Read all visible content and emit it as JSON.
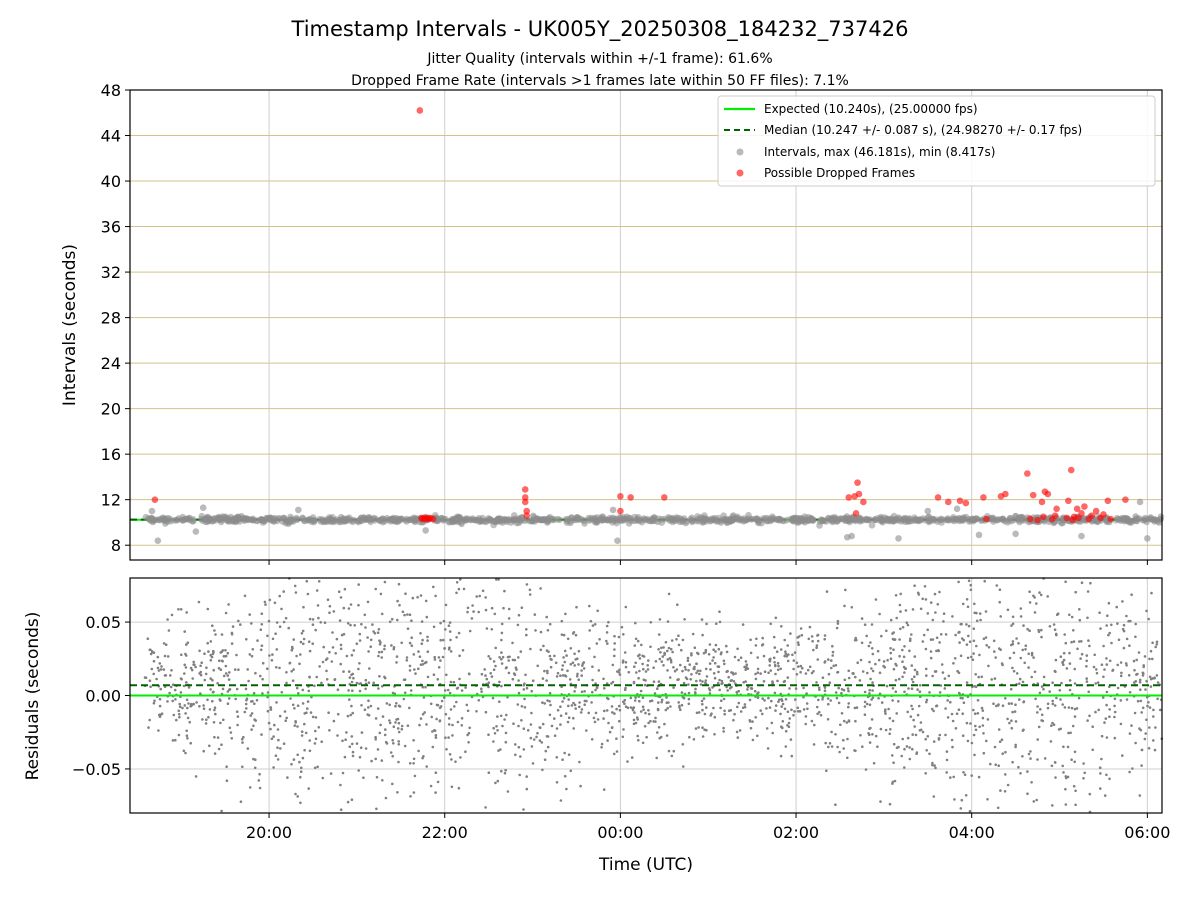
{
  "chart_data": [
    {
      "type": "scatter",
      "title": "Timestamp Intervals - UK005Y_20250308_184232_737426",
      "subtitle_lines": [
        "Jitter Quality (intervals within +/-1 frame): 61.6%",
        "Dropped Frame Rate (intervals >1 frames late within 50 FF files): 7.1%"
      ],
      "ylabel": "Intervals (seconds)",
      "x_range": [
        "18:25",
        "06:10"
      ],
      "ylim": [
        6.7,
        48
      ],
      "y_ticks": [
        "8",
        "12",
        "16",
        "20",
        "24",
        "28",
        "32",
        "36",
        "40",
        "44",
        "48"
      ],
      "grid": "horizontal gridlines tan, vertical gridlines gray",
      "legend_position": "top-right",
      "legend": [
        "Expected (10.240s), (25.00000 fps)",
        "Median (10.247 +/- 0.087 s), (24.98270 +/- 0.17 fps)",
        "Intervals, max (46.181s), min (8.417s)",
        "Possible Dropped Frames"
      ],
      "expected_interval": 10.24,
      "median_interval": 10.247,
      "max_interval": 46.181,
      "min_interval": 8.417,
      "data_start": "18:35",
      "data_end": "06:10",
      "typical_spread": 0.35,
      "dropped_frames": [
        {
          "x": "18:42",
          "y": 12.0
        },
        {
          "x": "21:43",
          "y": 46.2
        },
        {
          "x": "21:44",
          "y": 10.4
        },
        {
          "x": "21:45",
          "y": 10.3
        },
        {
          "x": "21:46",
          "y": 10.4
        },
        {
          "x": "21:47",
          "y": 10.3
        },
        {
          "x": "21:48",
          "y": 10.4
        },
        {
          "x": "21:49",
          "y": 10.3
        },
        {
          "x": "21:50",
          "y": 10.4
        },
        {
          "x": "21:52",
          "y": 10.3
        },
        {
          "x": "22:55",
          "y": 12.9
        },
        {
          "x": "22:55",
          "y": 12.2
        },
        {
          "x": "22:55",
          "y": 11.8
        },
        {
          "x": "22:56",
          "y": 11.0
        },
        {
          "x": "22:56",
          "y": 10.6
        },
        {
          "x": "00:00",
          "y": 12.3
        },
        {
          "x": "00:00",
          "y": 11.0
        },
        {
          "x": "00:07",
          "y": 12.2
        },
        {
          "x": "00:30",
          "y": 12.2
        },
        {
          "x": "02:36",
          "y": 12.2
        },
        {
          "x": "02:40",
          "y": 12.3
        },
        {
          "x": "02:41",
          "y": 10.8
        },
        {
          "x": "02:42",
          "y": 13.5
        },
        {
          "x": "02:43",
          "y": 12.5
        },
        {
          "x": "02:46",
          "y": 11.8
        },
        {
          "x": "03:37",
          "y": 12.2
        },
        {
          "x": "03:44",
          "y": 11.8
        },
        {
          "x": "03:52",
          "y": 11.9
        },
        {
          "x": "03:56",
          "y": 11.7
        },
        {
          "x": "04:08",
          "y": 12.2
        },
        {
          "x": "04:10",
          "y": 10.3
        },
        {
          "x": "04:20",
          "y": 12.3
        },
        {
          "x": "04:23",
          "y": 12.5
        },
        {
          "x": "04:38",
          "y": 14.3
        },
        {
          "x": "04:40",
          "y": 10.3
        },
        {
          "x": "04:42",
          "y": 12.4
        },
        {
          "x": "04:45",
          "y": 10.2
        },
        {
          "x": "04:48",
          "y": 11.8
        },
        {
          "x": "04:49",
          "y": 10.5
        },
        {
          "x": "04:50",
          "y": 12.7
        },
        {
          "x": "04:52",
          "y": 12.5
        },
        {
          "x": "04:55",
          "y": 10.3
        },
        {
          "x": "04:57",
          "y": 10.6
        },
        {
          "x": "04:58",
          "y": 11.2
        },
        {
          "x": "05:05",
          "y": 10.4
        },
        {
          "x": "05:06",
          "y": 11.9
        },
        {
          "x": "05:08",
          "y": 14.6
        },
        {
          "x": "05:09",
          "y": 10.2
        },
        {
          "x": "05:10",
          "y": 10.5
        },
        {
          "x": "05:12",
          "y": 11.2
        },
        {
          "x": "05:13",
          "y": 10.4
        },
        {
          "x": "05:15",
          "y": 10.8
        },
        {
          "x": "05:17",
          "y": 11.4
        },
        {
          "x": "05:20",
          "y": 10.3
        },
        {
          "x": "05:22",
          "y": 10.6
        },
        {
          "x": "05:25",
          "y": 11.0
        },
        {
          "x": "05:28",
          "y": 10.4
        },
        {
          "x": "05:30",
          "y": 10.7
        },
        {
          "x": "05:33",
          "y": 11.9
        },
        {
          "x": "05:35",
          "y": 10.3
        },
        {
          "x": "05:45",
          "y": 12.0
        }
      ],
      "outlier_intervals": [
        {
          "x": "18:44",
          "y": 8.4
        },
        {
          "x": "18:40",
          "y": 11.0
        },
        {
          "x": "19:10",
          "y": 9.2
        },
        {
          "x": "19:15",
          "y": 11.3
        },
        {
          "x": "20:20",
          "y": 11.1
        },
        {
          "x": "21:47",
          "y": 9.3
        },
        {
          "x": "23:58",
          "y": 8.4
        },
        {
          "x": "23:55",
          "y": 11.1
        },
        {
          "x": "02:35",
          "y": 8.7
        },
        {
          "x": "02:38",
          "y": 8.8
        },
        {
          "x": "03:10",
          "y": 8.6
        },
        {
          "x": "03:30",
          "y": 11.0
        },
        {
          "x": "04:05",
          "y": 8.9
        },
        {
          "x": "05:15",
          "y": 8.8
        },
        {
          "x": "05:55",
          "y": 11.8
        },
        {
          "x": "06:00",
          "y": 8.6
        },
        {
          "x": "04:30",
          "y": 9.0
        },
        {
          "x": "03:50",
          "y": 11.2
        }
      ]
    },
    {
      "type": "scatter",
      "ylabel": "Residuals (seconds)",
      "xlabel": "Time (UTC)",
      "x_range": [
        "18:25",
        "06:10"
      ],
      "x_ticks": [
        "20:00",
        "22:00",
        "00:00",
        "02:00",
        "04:00",
        "06:00"
      ],
      "ylim": [
        -0.08,
        0.08
      ],
      "y_ticks": [
        "0.05",
        "0.00",
        "−0.05"
      ],
      "grid": "horizontal and vertical gridlines gray",
      "zero_line": 0.0,
      "median_offset": 0.007,
      "data_start": "18:35",
      "data_end": "06:10",
      "spread_profile": [
        {
          "x": "18:35",
          "sd": 0.018
        },
        {
          "x": "19:20",
          "sd": 0.025
        },
        {
          "x": "20:00",
          "sd": 0.05
        },
        {
          "x": "22:00",
          "sd": 0.045
        },
        {
          "x": "00:00",
          "sd": 0.025
        },
        {
          "x": "01:30",
          "sd": 0.016
        },
        {
          "x": "02:30",
          "sd": 0.03
        },
        {
          "x": "04:00",
          "sd": 0.045
        },
        {
          "x": "05:30",
          "sd": 0.045
        },
        {
          "x": "06:10",
          "sd": 0.02
        }
      ]
    }
  ],
  "colors": {
    "expected": "#00ee00",
    "median": "#006400",
    "intervals": "#8c8c8c",
    "dropped": "#ff0000",
    "grid_top": "#d2c38a",
    "grid": "#cfcfcf",
    "residual_points": "#808080"
  }
}
